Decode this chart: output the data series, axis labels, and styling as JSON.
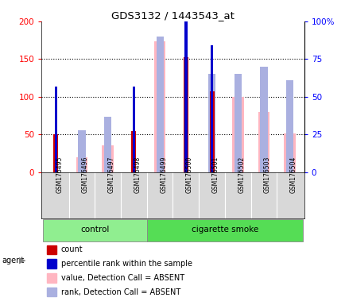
{
  "title": "GDS3132 / 1443543_at",
  "samples": [
    "GSM176495",
    "GSM176496",
    "GSM176497",
    "GSM176498",
    "GSM176499",
    "GSM176500",
    "GSM176501",
    "GSM176502",
    "GSM176503",
    "GSM176504"
  ],
  "count": [
    50,
    0,
    0,
    55,
    0,
    152,
    107,
    0,
    0,
    0
  ],
  "percentile_rank": [
    57,
    0,
    0,
    57,
    0,
    104,
    84,
    0,
    0,
    0
  ],
  "value_absent": [
    0,
    20,
    36,
    0,
    174,
    0,
    0,
    100,
    80,
    51
  ],
  "rank_absent": [
    0,
    28,
    37,
    0,
    90,
    0,
    65,
    65,
    70,
    61
  ],
  "ylim_left": [
    0,
    200
  ],
  "ylim_right": [
    0,
    100
  ],
  "yticks_left": [
    0,
    50,
    100,
    150,
    200
  ],
  "yticks_right": [
    0,
    25,
    50,
    75,
    100
  ],
  "yticklabels_left": [
    "0",
    "50",
    "100",
    "150",
    "200"
  ],
  "yticklabels_right": [
    "0",
    "25",
    "50",
    "75",
    "100%"
  ],
  "color_count": "#cc0000",
  "color_rank": "#0000cc",
  "color_value_absent": "#ffb6c1",
  "color_rank_absent": "#aab0e0",
  "legend_labels": [
    "count",
    "percentile rank within the sample",
    "value, Detection Call = ABSENT",
    "rank, Detection Call = ABSENT"
  ],
  "legend_colors": [
    "#cc0000",
    "#0000cc",
    "#ffb6c1",
    "#aab0e0"
  ],
  "group_control_label": "control",
  "group_smoke_label": "cigarette smoke",
  "agent_label": "agent",
  "plot_bg": "#ffffff",
  "tick_area_bg": "#d8d8d8",
  "group_bg_control": "#90ee90",
  "group_bg_smoke": "#55dd55",
  "n_control": 4,
  "n_smoke": 6
}
